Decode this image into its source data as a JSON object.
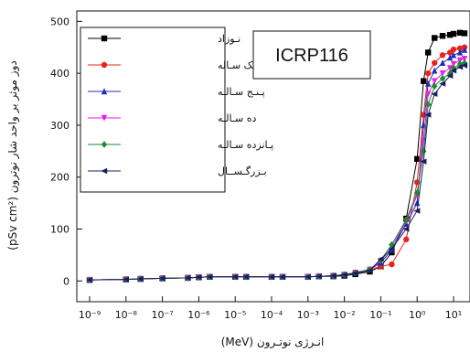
{
  "chart_data": {
    "type": "line",
    "title": "",
    "annotation": "ICRP116",
    "xlabel": "انـرژی نوتـرون (MeV)",
    "ylabel": "دوز موثر بر واحد شار نوترون (pSv cm²)",
    "xscale": "log",
    "xlim": [
      1e-09,
      20
    ],
    "ylim": [
      -40,
      520
    ],
    "grid": false,
    "legend_position": "top-left",
    "x_tick_labels": [
      "10⁻⁹",
      "10⁻⁸",
      "10⁻⁷",
      "10⁻⁶",
      "10⁻⁵",
      "10⁻⁴",
      "10⁻³",
      "10⁻²",
      "10⁻¹",
      "10⁰",
      "10¹"
    ],
    "y_tick_labels": [
      "0",
      "100",
      "200",
      "300",
      "400",
      "500"
    ],
    "x": [
      1e-09,
      1e-08,
      2.5e-08,
      1e-07,
      5e-07,
      1e-06,
      2e-06,
      1e-05,
      2e-05,
      0.0001,
      0.0002,
      0.001,
      0.002,
      0.005,
      0.01,
      0.02,
      0.05,
      0.1,
      0.2,
      0.5,
      1,
      1.5,
      2,
      3,
      5,
      8,
      10,
      15,
      20
    ],
    "series": [
      {
        "name": "نـوزاد",
        "color": "#000000",
        "marker": "square",
        "values": [
          2,
          3,
          4,
          5,
          6,
          7,
          8,
          8,
          8,
          8,
          8,
          8,
          9,
          9,
          10,
          13,
          18,
          28,
          55,
          120,
          235,
          385,
          440,
          468,
          472,
          474,
          476,
          478,
          477
        ]
      },
      {
        "name": "یـک سـاله",
        "color": "#e8231c",
        "marker": "circle",
        "values": [
          2,
          3,
          4,
          5,
          6,
          7,
          8,
          8,
          8,
          8,
          8,
          8,
          9,
          10,
          12,
          16,
          22,
          28,
          32,
          80,
          190,
          320,
          400,
          420,
          435,
          440,
          446,
          448,
          450
        ]
      },
      {
        "name": "پـنـج سـالـه",
        "color": "#1f2db8",
        "marker": "triangle-up",
        "values": [
          2,
          3,
          4,
          5,
          6,
          7,
          8,
          8,
          8,
          8,
          8,
          8,
          9,
          10,
          12,
          16,
          22,
          35,
          60,
          110,
          150,
          300,
          380,
          405,
          420,
          430,
          435,
          440,
          445
        ]
      },
      {
        "name": "ده سـالـه",
        "color": "#e61ee6",
        "marker": "triangle-down",
        "values": [
          2,
          3,
          4,
          5,
          6,
          7,
          8,
          8,
          8,
          8,
          8,
          8,
          9,
          10,
          12,
          16,
          22,
          38,
          65,
          115,
          165,
          270,
          360,
          385,
          400,
          410,
          418,
          425,
          428
        ]
      },
      {
        "name": "پـانزده سـالـه",
        "color": "#1b8a2f",
        "marker": "diamond",
        "values": [
          2,
          3,
          4,
          5,
          6,
          7,
          8,
          8,
          8,
          8,
          8,
          8,
          9,
          10,
          12,
          16,
          22,
          40,
          70,
          118,
          170,
          250,
          340,
          375,
          390,
          400,
          410,
          418,
          420
        ]
      },
      {
        "name": "بـزرگـســال",
        "color": "#1a1f5c",
        "marker": "triangle-left",
        "values": [
          2,
          3,
          4,
          5,
          6,
          7,
          8,
          8,
          8,
          8,
          8,
          8,
          9,
          10,
          12,
          15,
          20,
          42,
          62,
          100,
          135,
          230,
          320,
          360,
          380,
          395,
          405,
          412,
          415
        ]
      }
    ]
  }
}
